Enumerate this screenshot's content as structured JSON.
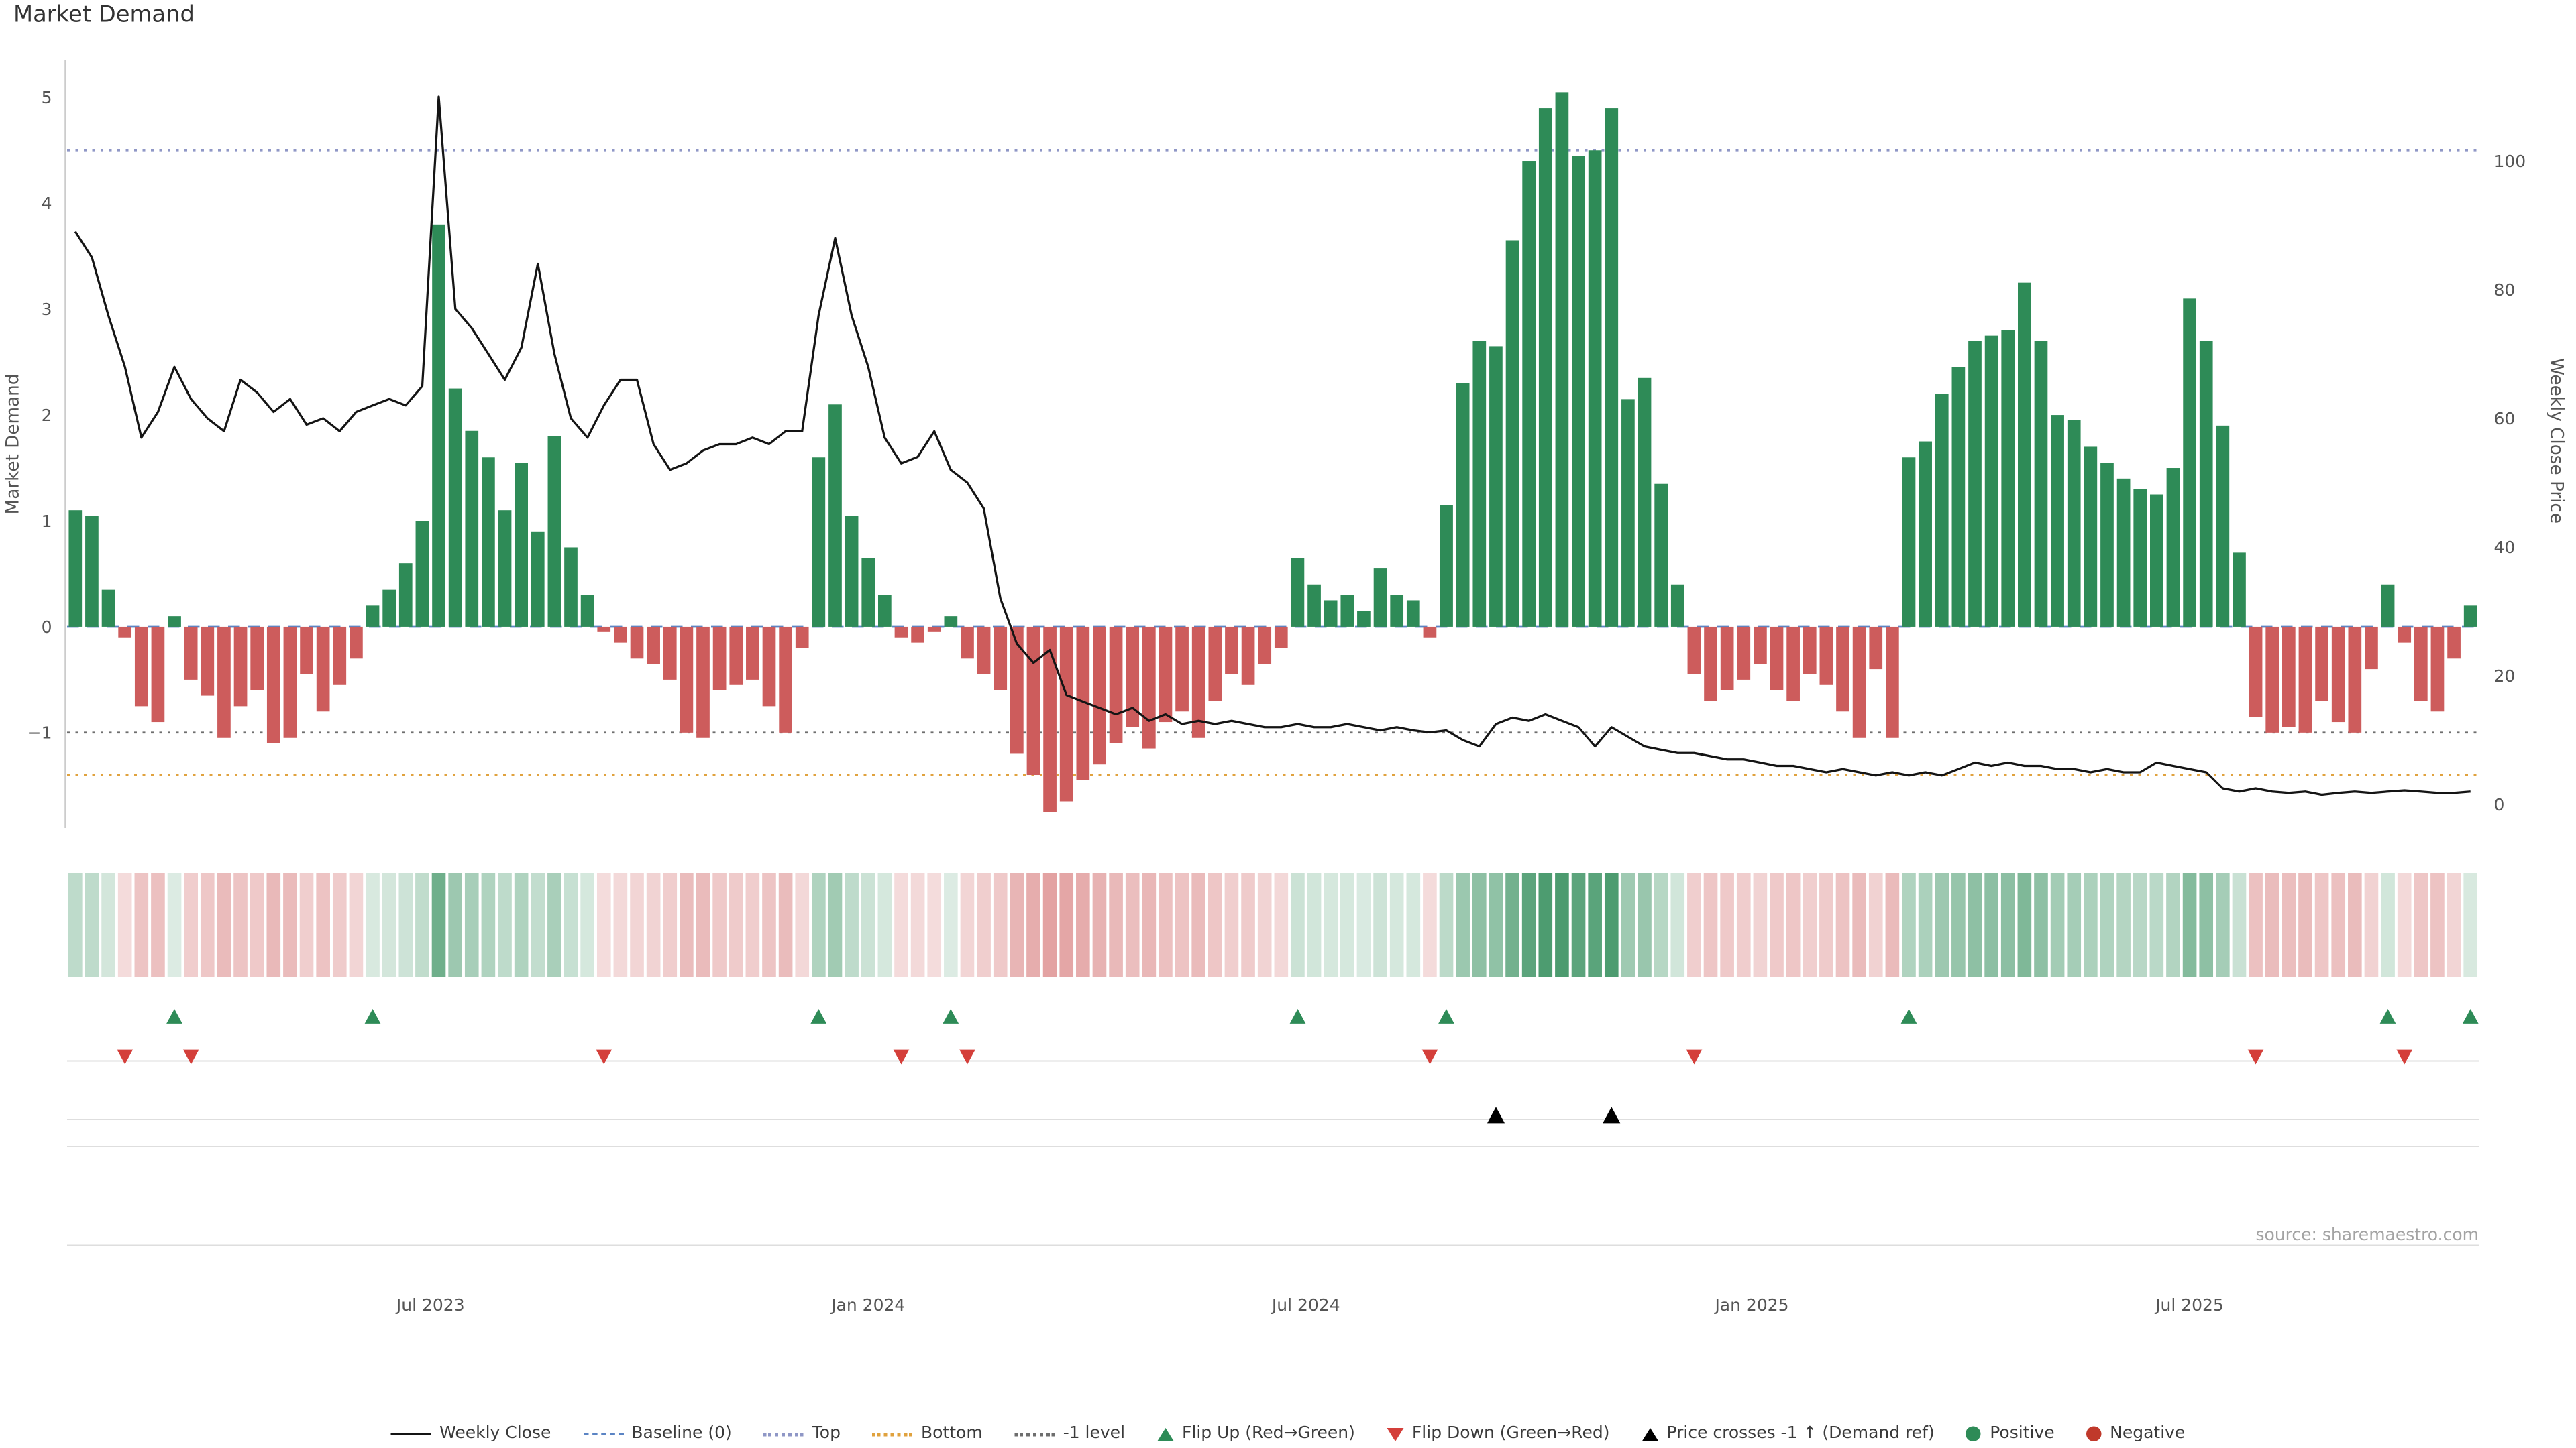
{
  "page": {
    "title": "Market Demand",
    "source": "source: sharemaestro.com"
  },
  "chart_data": {
    "type": "composite",
    "title": "Market Demand",
    "x_unit": "week",
    "x_count": 146,
    "x_ticks": [
      {
        "index": 21.5,
        "label": "Jul 2023"
      },
      {
        "index": 48,
        "label": "Jan 2024"
      },
      {
        "index": 74.5,
        "label": "Jul 2024"
      },
      {
        "index": 101.5,
        "label": "Jan 2025"
      },
      {
        "index": 128,
        "label": "Jul 2025"
      }
    ],
    "y_left": {
      "label": "Market Demand",
      "range": [
        -1.9,
        5.35
      ],
      "ticks": [
        {
          "value": 5,
          "label": "5"
        },
        {
          "value": 4,
          "label": "4"
        },
        {
          "value": 3,
          "label": "3"
        },
        {
          "value": 2,
          "label": "2"
        },
        {
          "value": 1,
          "label": "1"
        },
        {
          "value": 0,
          "label": "0"
        },
        {
          "value": -1,
          "label": "−1"
        }
      ]
    },
    "y_right": {
      "label": "Weekly Close Price",
      "range": [
        0,
        115
      ],
      "ticks": [
        {
          "value": 100,
          "label": "100"
        },
        {
          "value": 80,
          "label": "80"
        },
        {
          "value": 60,
          "label": "60"
        },
        {
          "value": 40,
          "label": "40"
        },
        {
          "value": 20,
          "label": "20"
        },
        {
          "value": 0,
          "label": "0"
        }
      ]
    },
    "reference_lines": {
      "baseline": {
        "label": "Baseline (0)",
        "value": 0,
        "style": "dashed",
        "color": "#5b84c4"
      },
      "top": {
        "label": "Top",
        "value": 4.5,
        "style": "dotted",
        "color": "#8f97c6"
      },
      "bottom": {
        "label": "Bottom",
        "value": -1.4,
        "style": "dotted",
        "color": "#e0a23e"
      },
      "minus_one": {
        "label": "-1 level",
        "value": -1,
        "style": "dotted",
        "color": "#6e6e6e"
      }
    },
    "series": [
      {
        "name": "Market Demand",
        "kind": "bar",
        "axis": "left",
        "positive_color": "#2e8b57",
        "negative_color": "#cd5c5c",
        "values": [
          1.1,
          1.05,
          0.35,
          -0.1,
          -0.75,
          -0.9,
          0.1,
          -0.5,
          -0.65,
          -1.05,
          -0.75,
          -0.6,
          -1.1,
          -1.05,
          -0.45,
          -0.8,
          -0.55,
          -0.3,
          0.2,
          0.35,
          0.6,
          1.0,
          3.8,
          2.25,
          1.85,
          1.6,
          1.1,
          1.55,
          0.9,
          1.8,
          0.75,
          0.3,
          -0.05,
          -0.15,
          -0.3,
          -0.35,
          -0.5,
          -1.0,
          -1.05,
          -0.6,
          -0.55,
          -0.5,
          -0.75,
          -1.0,
          -0.2,
          1.6,
          2.1,
          1.05,
          0.65,
          0.3,
          -0.1,
          -0.15,
          -0.05,
          0.1,
          -0.3,
          -0.45,
          -0.6,
          -1.2,
          -1.4,
          -1.75,
          -1.65,
          -1.45,
          -1.3,
          -1.1,
          -0.95,
          -1.15,
          -0.9,
          -0.8,
          -1.05,
          -0.7,
          -0.45,
          -0.55,
          -0.35,
          -0.2,
          0.65,
          0.4,
          0.25,
          0.3,
          0.15,
          0.55,
          0.3,
          0.25,
          -0.1,
          1.15,
          2.3,
          2.7,
          2.65,
          3.65,
          4.4,
          4.9,
          5.05,
          4.45,
          4.5,
          4.9,
          2.15,
          2.35,
          1.35,
          0.4,
          -0.45,
          -0.7,
          -0.6,
          -0.5,
          -0.35,
          -0.6,
          -0.7,
          -0.45,
          -0.55,
          -0.8,
          -1.05,
          -0.4,
          -1.05,
          1.6,
          1.75,
          2.2,
          2.45,
          2.7,
          2.75,
          2.8,
          3.25,
          2.7,
          2.0,
          1.95,
          1.7,
          1.55,
          1.4,
          1.3,
          1.25,
          1.5,
          3.1,
          2.7,
          1.9,
          0.7,
          -0.85,
          -1.0,
          -0.95,
          -1.0,
          -0.7,
          -0.9,
          -1.0,
          -0.4,
          0.4,
          -0.15,
          -0.7,
          -0.8,
          -0.3,
          0.2
        ]
      },
      {
        "name": "Weekly Close",
        "kind": "line",
        "axis": "right",
        "color": "#141414",
        "values": [
          89,
          85,
          76,
          68,
          57,
          61,
          68,
          63,
          60,
          58,
          66,
          64,
          61,
          63,
          59,
          60,
          58,
          61,
          62,
          63,
          62,
          65,
          110,
          77,
          74,
          70,
          66,
          71,
          84,
          70,
          60,
          57,
          62,
          66,
          66,
          56,
          52,
          53,
          55,
          56,
          56,
          57,
          56,
          58,
          58,
          76,
          88,
          76,
          68,
          57,
          53,
          54,
          58,
          52,
          50,
          46,
          32,
          25,
          22,
          24,
          17,
          16,
          15,
          14,
          15,
          13,
          14,
          12.5,
          13,
          12.5,
          13,
          12.5,
          12,
          12,
          12.5,
          12,
          12,
          12.5,
          12,
          11.5,
          12,
          11.5,
          11.2,
          11.5,
          10,
          9,
          12.5,
          13.5,
          13,
          14,
          13,
          12,
          9,
          12,
          10.5,
          9,
          8.5,
          8,
          8,
          7.5,
          7,
          7,
          6.5,
          6,
          6,
          5.5,
          5,
          5.5,
          5,
          4.5,
          5,
          4.5,
          5,
          4.5,
          5.5,
          6.5,
          6,
          6.5,
          6,
          6,
          5.5,
          5.5,
          5,
          5.5,
          5,
          5,
          6.5,
          6,
          5.5,
          5,
          2.5,
          2,
          2.5,
          2,
          1.8,
          2,
          1.5,
          1.8,
          2,
          1.8,
          2,
          2.2,
          2,
          1.8,
          1.8,
          2
        ]
      }
    ],
    "markers": {
      "flip_up": {
        "label": "Flip Up (Red→Green)",
        "color": "#2e8b57",
        "weeks": [
          6,
          18,
          45,
          53,
          74,
          83,
          111,
          140,
          145
        ]
      },
      "flip_down": {
        "label": "Flip Down (Green→Red)",
        "color": "#d43f3a",
        "weeks": [
          3,
          7,
          32,
          50,
          54,
          82,
          98,
          132,
          141
        ]
      },
      "price_cross": {
        "label": "Price crosses -1 ↑ (Demand ref)",
        "color": "#000000",
        "weeks": [
          86,
          93
        ]
      }
    },
    "heatmap": {
      "based_on": "Market Demand sign and intensity",
      "positive_color": "#2e8b57",
      "negative_color": "#cd5c5c"
    }
  },
  "legend": {
    "items": [
      {
        "label": "Weekly Close",
        "type": "line-solid",
        "color": "#141414"
      },
      {
        "label": "Baseline (0)",
        "type": "line-dashed",
        "color": "#5b84c4"
      },
      {
        "label": "Top",
        "type": "line-dotted",
        "color": "#8f97c6"
      },
      {
        "label": "Bottom",
        "type": "line-dotted",
        "color": "#e0a23e"
      },
      {
        "label": "-1 level",
        "type": "line-dotted",
        "color": "#6e6e6e"
      },
      {
        "label": "Flip Up (Red→Green)",
        "type": "triangle-up",
        "color": "#2e8b57"
      },
      {
        "label": "Flip Down (Green→Red)",
        "type": "triangle-down",
        "color": "#d43f3a"
      },
      {
        "label": "Price crosses -1 ↑ (Demand ref)",
        "type": "triangle-up",
        "color": "#000000"
      },
      {
        "label": "Positive",
        "type": "dot",
        "color": "#2e8b57"
      },
      {
        "label": "Negative",
        "type": "dot",
        "color": "#c0392b"
      }
    ]
  }
}
